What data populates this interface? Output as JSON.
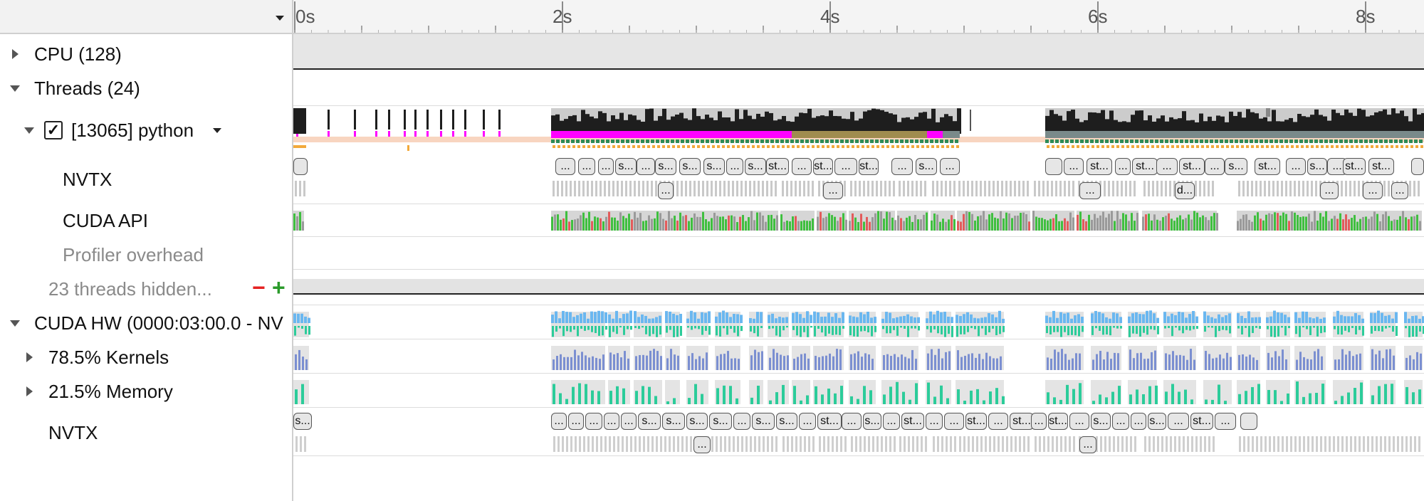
{
  "timeline": {
    "ticks": [
      "0s",
      "2s",
      "4s",
      "6s",
      "8s"
    ]
  },
  "rows": {
    "cpu": {
      "label": "CPU (128)"
    },
    "threads": {
      "label": "Threads (24)"
    },
    "python": {
      "label": "[13065] python",
      "checked": true,
      "check_glyph": "✓"
    },
    "nvtx": {
      "label": "NVTX"
    },
    "cuda_api": {
      "label": "CUDA API"
    },
    "profiler": {
      "label": "Profiler overhead"
    },
    "hidden": {
      "label": "23 threads hidden...",
      "minus": "−",
      "plus": "+"
    },
    "cuda_hw": {
      "label": "CUDA HW (0000:03:00.0 - NV"
    },
    "kernels": {
      "label": "78.5% Kernels"
    },
    "memory": {
      "label": "21.5% Memory"
    },
    "nvtx2": {
      "label": "NVTX"
    }
  },
  "nvtx_labels": {
    "thread_top": [
      "",
      "...",
      "...",
      "...",
      "s...",
      "...",
      "s...",
      "s...",
      "s...",
      "...",
      "s...",
      "st...",
      "...",
      "st...",
      "...",
      "st...",
      "...",
      "s...",
      "...",
      "",
      "...",
      "st...",
      "...",
      "st...",
      "...",
      "st...",
      "...",
      "s...",
      "st...",
      "...",
      "s...",
      "...",
      "st...",
      "st...",
      ""
    ],
    "thread_bottom": [
      "...",
      "...",
      "...",
      "d...",
      "...",
      "...",
      "..."
    ],
    "gpu_top": [
      "s...",
      "...",
      "...",
      "...",
      "...",
      "...",
      "s...",
      "s...",
      "s...",
      "s...",
      "...",
      "s...",
      "s...",
      "...",
      "st...",
      "...",
      "s...",
      "...",
      "st...",
      "...",
      "...",
      "st...",
      "...",
      "st...",
      "...",
      "st...",
      "...",
      "s...",
      "...",
      "...",
      "s...",
      "...",
      "st...",
      "...",
      ""
    ],
    "gpu_bottom": [
      "...",
      "..."
    ]
  },
  "colors": {
    "accent_magenta": "#ff00ff",
    "cpu_dark": "#1e1e1e",
    "range_orange": "#f2a93b",
    "thread_bg": "#f8d5c0",
    "cuda_green": "#3fbf3f",
    "kernel_blue": "#7b8fd1",
    "memory_teal": "#2ccc9a",
    "gpu_light_blue": "#6ab7f0",
    "minus_red": "#e52222",
    "plus_green": "#2a9a2a"
  }
}
